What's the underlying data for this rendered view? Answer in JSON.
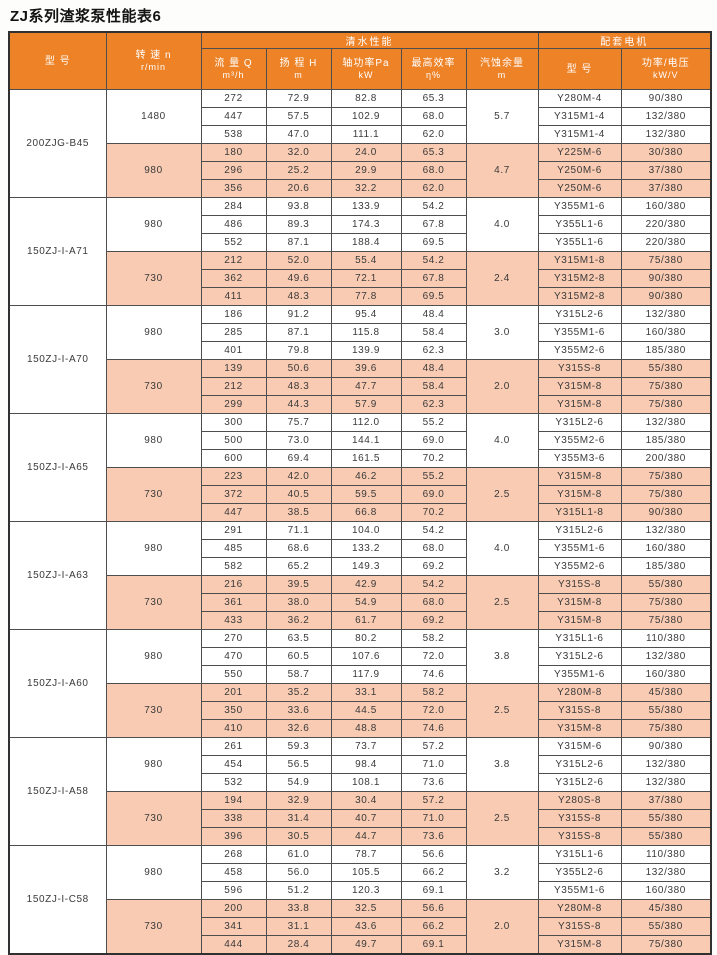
{
  "title": "ZJ系列渣浆泵性能表6",
  "colors": {
    "header_bg": "#ee8227",
    "header_text": "#ffffff",
    "shaded_row_bg": "#f9cbb3",
    "grid_line": "#4e4e4e",
    "data_text": "#3a3a3a"
  },
  "header": {
    "model_label": "型  号",
    "speed_line1": "转 速 n",
    "speed_line2": "r/min",
    "water_group": "清水性能",
    "motor_group": "配套电机",
    "flow_line1": "流 量 Q",
    "flow_line2": "m³/h",
    "head_line1": "扬 程 H",
    "head_line2": "m",
    "power_line1": "轴功率Pa",
    "power_line2": "kW",
    "eff_line1": "最高效率",
    "eff_line2": "η%",
    "npsh_line1": "汽蚀余量",
    "npsh_line2": "m",
    "motor_model_label": "型  号",
    "motor_power_line1": "功率/电压",
    "motor_power_line2": "kW/V"
  },
  "blocks": [
    {
      "model": "200ZJG-B45",
      "groups": [
        {
          "speed": "1480",
          "npsh": "5.7",
          "shaded": false,
          "rows": [
            {
              "flow": "272",
              "head": "72.9",
              "power": "82.8",
              "eff": "65.3",
              "motor": "Y280M-4",
              "motor_power": "90/380"
            },
            {
              "flow": "447",
              "head": "57.5",
              "power": "102.9",
              "eff": "68.0",
              "motor": "Y315M1-4",
              "motor_power": "132/380"
            },
            {
              "flow": "538",
              "head": "47.0",
              "power": "111.1",
              "eff": "62.0",
              "motor": "Y315M1-4",
              "motor_power": "132/380"
            }
          ]
        },
        {
          "speed": "980",
          "npsh": "4.7",
          "shaded": true,
          "rows": [
            {
              "flow": "180",
              "head": "32.0",
              "power": "24.0",
              "eff": "65.3",
              "motor": "Y225M-6",
              "motor_power": "30/380"
            },
            {
              "flow": "296",
              "head": "25.2",
              "power": "29.9",
              "eff": "68.0",
              "motor": "Y250M-6",
              "motor_power": "37/380"
            },
            {
              "flow": "356",
              "head": "20.6",
              "power": "32.2",
              "eff": "62.0",
              "motor": "Y250M-6",
              "motor_power": "37/380"
            }
          ]
        }
      ]
    },
    {
      "model": "150ZJ-I-A71",
      "groups": [
        {
          "speed": "980",
          "npsh": "4.0",
          "shaded": false,
          "rows": [
            {
              "flow": "284",
              "head": "93.8",
              "power": "133.9",
              "eff": "54.2",
              "motor": "Y355M1-6",
              "motor_power": "160/380"
            },
            {
              "flow": "486",
              "head": "89.3",
              "power": "174.3",
              "eff": "67.8",
              "motor": "Y355L1-6",
              "motor_power": "220/380"
            },
            {
              "flow": "552",
              "head": "87.1",
              "power": "188.4",
              "eff": "69.5",
              "motor": "Y355L1-6",
              "motor_power": "220/380"
            }
          ]
        },
        {
          "speed": "730",
          "npsh": "2.4",
          "shaded": true,
          "rows": [
            {
              "flow": "212",
              "head": "52.0",
              "power": "55.4",
              "eff": "54.2",
              "motor": "Y315M1-8",
              "motor_power": "75/380"
            },
            {
              "flow": "362",
              "head": "49.6",
              "power": "72.1",
              "eff": "67.8",
              "motor": "Y315M2-8",
              "motor_power": "90/380"
            },
            {
              "flow": "411",
              "head": "48.3",
              "power": "77.8",
              "eff": "69.5",
              "motor": "Y315M2-8",
              "motor_power": "90/380"
            }
          ]
        }
      ]
    },
    {
      "model": "150ZJ-I-A70",
      "groups": [
        {
          "speed": "980",
          "npsh": "3.0",
          "shaded": false,
          "rows": [
            {
              "flow": "186",
              "head": "91.2",
              "power": "95.4",
              "eff": "48.4",
              "motor": "Y315L2-6",
              "motor_power": "132/380"
            },
            {
              "flow": "285",
              "head": "87.1",
              "power": "115.8",
              "eff": "58.4",
              "motor": "Y355M1-6",
              "motor_power": "160/380"
            },
            {
              "flow": "401",
              "head": "79.8",
              "power": "139.9",
              "eff": "62.3",
              "motor": "Y355M2-6",
              "motor_power": "185/380"
            }
          ]
        },
        {
          "speed": "730",
          "npsh": "2.0",
          "shaded": true,
          "rows": [
            {
              "flow": "139",
              "head": "50.6",
              "power": "39.6",
              "eff": "48.4",
              "motor": "Y315S-8",
              "motor_power": "55/380"
            },
            {
              "flow": "212",
              "head": "48.3",
              "power": "47.7",
              "eff": "58.4",
              "motor": "Y315M-8",
              "motor_power": "75/380"
            },
            {
              "flow": "299",
              "head": "44.3",
              "power": "57.9",
              "eff": "62.3",
              "motor": "Y315M-8",
              "motor_power": "75/380"
            }
          ]
        }
      ]
    },
    {
      "model": "150ZJ-I-A65",
      "groups": [
        {
          "speed": "980",
          "npsh": "4.0",
          "shaded": false,
          "rows": [
            {
              "flow": "300",
              "head": "75.7",
              "power": "112.0",
              "eff": "55.2",
              "motor": "Y315L2-6",
              "motor_power": "132/380"
            },
            {
              "flow": "500",
              "head": "73.0",
              "power": "144.1",
              "eff": "69.0",
              "motor": "Y355M2-6",
              "motor_power": "185/380"
            },
            {
              "flow": "600",
              "head": "69.4",
              "power": "161.5",
              "eff": "70.2",
              "motor": "Y355M3-6",
              "motor_power": "200/380"
            }
          ]
        },
        {
          "speed": "730",
          "npsh": "2.5",
          "shaded": true,
          "rows": [
            {
              "flow": "223",
              "head": "42.0",
              "power": "46.2",
              "eff": "55.2",
              "motor": "Y315M-8",
              "motor_power": "75/380"
            },
            {
              "flow": "372",
              "head": "40.5",
              "power": "59.5",
              "eff": "69.0",
              "motor": "Y315M-8",
              "motor_power": "75/380"
            },
            {
              "flow": "447",
              "head": "38.5",
              "power": "66.8",
              "eff": "70.2",
              "motor": "Y315L1-8",
              "motor_power": "90/380"
            }
          ]
        }
      ]
    },
    {
      "model": "150ZJ-I-A63",
      "groups": [
        {
          "speed": "980",
          "npsh": "4.0",
          "shaded": false,
          "rows": [
            {
              "flow": "291",
              "head": "71.1",
              "power": "104.0",
              "eff": "54.2",
              "motor": "Y315L2-6",
              "motor_power": "132/380"
            },
            {
              "flow": "485",
              "head": "68.6",
              "power": "133.2",
              "eff": "68.0",
              "motor": "Y355M1-6",
              "motor_power": "160/380"
            },
            {
              "flow": "582",
              "head": "65.2",
              "power": "149.3",
              "eff": "69.2",
              "motor": "Y355M2-6",
              "motor_power": "185/380"
            }
          ]
        },
        {
          "speed": "730",
          "npsh": "2.5",
          "shaded": true,
          "rows": [
            {
              "flow": "216",
              "head": "39.5",
              "power": "42.9",
              "eff": "54.2",
              "motor": "Y315S-8",
              "motor_power": "55/380"
            },
            {
              "flow": "361",
              "head": "38.0",
              "power": "54.9",
              "eff": "68.0",
              "motor": "Y315M-8",
              "motor_power": "75/380"
            },
            {
              "flow": "433",
              "head": "36.2",
              "power": "61.7",
              "eff": "69.2",
              "motor": "Y315M-8",
              "motor_power": "75/380"
            }
          ]
        }
      ]
    },
    {
      "model": "150ZJ-I-A60",
      "groups": [
        {
          "speed": "980",
          "npsh": "3.8",
          "shaded": false,
          "rows": [
            {
              "flow": "270",
              "head": "63.5",
              "power": "80.2",
              "eff": "58.2",
              "motor": "Y315L1-6",
              "motor_power": "110/380"
            },
            {
              "flow": "470",
              "head": "60.5",
              "power": "107.6",
              "eff": "72.0",
              "motor": "Y315L2-6",
              "motor_power": "132/380"
            },
            {
              "flow": "550",
              "head": "58.7",
              "power": "117.9",
              "eff": "74.6",
              "motor": "Y355M1-6",
              "motor_power": "160/380"
            }
          ]
        },
        {
          "speed": "730",
          "npsh": "2.5",
          "shaded": true,
          "rows": [
            {
              "flow": "201",
              "head": "35.2",
              "power": "33.1",
              "eff": "58.2",
              "motor": "Y280M-8",
              "motor_power": "45/380"
            },
            {
              "flow": "350",
              "head": "33.6",
              "power": "44.5",
              "eff": "72.0",
              "motor": "Y315S-8",
              "motor_power": "55/380"
            },
            {
              "flow": "410",
              "head": "32.6",
              "power": "48.8",
              "eff": "74.6",
              "motor": "Y315M-8",
              "motor_power": "75/380"
            }
          ]
        }
      ]
    },
    {
      "model": "150ZJ-I-A58",
      "groups": [
        {
          "speed": "980",
          "npsh": "3.8",
          "shaded": false,
          "rows": [
            {
              "flow": "261",
              "head": "59.3",
              "power": "73.7",
              "eff": "57.2",
              "motor": "Y315M-6",
              "motor_power": "90/380"
            },
            {
              "flow": "454",
              "head": "56.5",
              "power": "98.4",
              "eff": "71.0",
              "motor": "Y315L2-6",
              "motor_power": "132/380"
            },
            {
              "flow": "532",
              "head": "54.9",
              "power": "108.1",
              "eff": "73.6",
              "motor": "Y315L2-6",
              "motor_power": "132/380"
            }
          ]
        },
        {
          "speed": "730",
          "npsh": "2.5",
          "shaded": true,
          "rows": [
            {
              "flow": "194",
              "head": "32.9",
              "power": "30.4",
              "eff": "57.2",
              "motor": "Y280S-8",
              "motor_power": "37/380"
            },
            {
              "flow": "338",
              "head": "31.4",
              "power": "40.7",
              "eff": "71.0",
              "motor": "Y315S-8",
              "motor_power": "55/380"
            },
            {
              "flow": "396",
              "head": "30.5",
              "power": "44.7",
              "eff": "73.6",
              "motor": "Y315S-8",
              "motor_power": "55/380"
            }
          ]
        }
      ]
    },
    {
      "model": "150ZJ-I-C58",
      "groups": [
        {
          "speed": "980",
          "npsh": "3.2",
          "shaded": false,
          "rows": [
            {
              "flow": "268",
              "head": "61.0",
              "power": "78.7",
              "eff": "56.6",
              "motor": "Y315L1-6",
              "motor_power": "110/380"
            },
            {
              "flow": "458",
              "head": "56.0",
              "power": "105.5",
              "eff": "66.2",
              "motor": "Y355L2-6",
              "motor_power": "132/380"
            },
            {
              "flow": "596",
              "head": "51.2",
              "power": "120.3",
              "eff": "69.1",
              "motor": "Y355M1-6",
              "motor_power": "160/380"
            }
          ]
        },
        {
          "speed": "730",
          "npsh": "2.0",
          "shaded": true,
          "rows": [
            {
              "flow": "200",
              "head": "33.8",
              "power": "32.5",
              "eff": "56.6",
              "motor": "Y280M-8",
              "motor_power": "45/380"
            },
            {
              "flow": "341",
              "head": "31.1",
              "power": "43.6",
              "eff": "66.2",
              "motor": "Y315S-8",
              "motor_power": "55/380"
            },
            {
              "flow": "444",
              "head": "28.4",
              "power": "49.7",
              "eff": "69.1",
              "motor": "Y315M-8",
              "motor_power": "75/380"
            }
          ]
        }
      ]
    }
  ]
}
